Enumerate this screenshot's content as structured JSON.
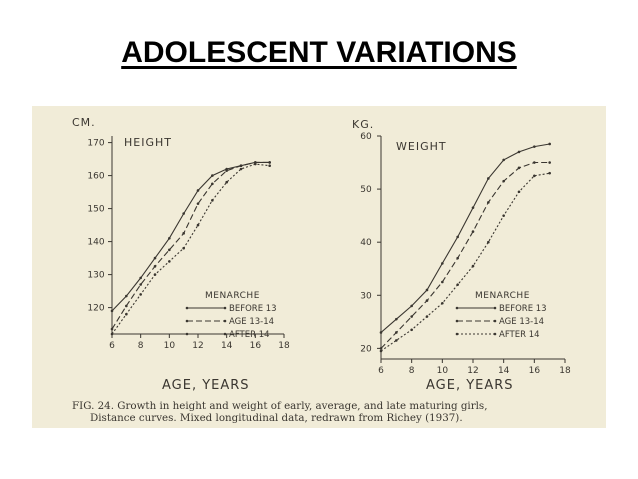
{
  "slide": {
    "title": "ADOLESCENT VARIATIONS"
  },
  "figure": {
    "caption_line1": "FIG. 24. Growth in height and weight of early, average, and late maturing girls,",
    "caption_line2": "Distance curves. Mixed longitudinal data, redrawn from Richey (1937).",
    "ink_color": "#3a3630",
    "paper_color": "#f1ecd8"
  },
  "chart_data": [
    {
      "type": "line",
      "title": "HEIGHT",
      "unit": "CM.",
      "xlabel": "AGE, YEARS",
      "ylabel": "",
      "xlim": [
        6,
        18
      ],
      "ylim": [
        112,
        172
      ],
      "xticks": [
        6,
        8,
        10,
        12,
        14,
        16,
        18
      ],
      "yticks": [
        120,
        130,
        140,
        150,
        160,
        170
      ],
      "legend_title": "MENARCHE",
      "legend_position": "bottom-right",
      "series": [
        {
          "name": "BEFORE 13",
          "style": "solid",
          "x": [
            6,
            7,
            8,
            9,
            10,
            11,
            12,
            13,
            14,
            15,
            16,
            17
          ],
          "y": [
            119,
            123.5,
            129,
            135,
            141,
            148.5,
            155.5,
            160,
            162,
            163,
            164,
            164
          ]
        },
        {
          "name": "AGE 13-14",
          "style": "dashed",
          "x": [
            6,
            7,
            8,
            9,
            10,
            11,
            12,
            13,
            14,
            15,
            16,
            17
          ],
          "y": [
            113.5,
            120.5,
            127,
            132.5,
            137.5,
            142.5,
            151.5,
            157.5,
            161.5,
            163,
            164,
            164
          ]
        },
        {
          "name": "AFTER 14",
          "style": "dotted",
          "x": [
            6,
            7,
            8,
            9,
            10,
            11,
            12,
            13,
            14,
            15,
            16,
            17
          ],
          "y": [
            112,
            118,
            124,
            130,
            134,
            138,
            145,
            152.5,
            158,
            162,
            163.5,
            163
          ]
        }
      ]
    },
    {
      "type": "line",
      "title": "WEIGHT",
      "unit": "KG.",
      "xlabel": "AGE, YEARS",
      "ylabel": "",
      "xlim": [
        6,
        18
      ],
      "ylim": [
        18,
        60
      ],
      "xticks": [
        6,
        8,
        10,
        12,
        14,
        16,
        18
      ],
      "yticks": [
        20,
        30,
        40,
        50,
        60
      ],
      "legend_title": "MENARCHE",
      "legend_position": "bottom-right",
      "series": [
        {
          "name": "BEFORE 13",
          "style": "solid",
          "x": [
            6,
            7,
            8,
            9,
            10,
            11,
            12,
            13,
            14,
            15,
            16,
            17
          ],
          "y": [
            23,
            25.5,
            28,
            31,
            36,
            41,
            46.5,
            52,
            55.5,
            57,
            58,
            58.5
          ]
        },
        {
          "name": "AGE 13-14",
          "style": "dashed",
          "x": [
            6,
            7,
            8,
            9,
            10,
            11,
            12,
            13,
            14,
            15,
            16,
            17
          ],
          "y": [
            20,
            23,
            26,
            29,
            32.5,
            37,
            42,
            47.5,
            51.5,
            54,
            55,
            55
          ]
        },
        {
          "name": "AFTER 14",
          "style": "dotted",
          "x": [
            6,
            7,
            8,
            9,
            10,
            11,
            12,
            13,
            14,
            15,
            16,
            17
          ],
          "y": [
            19.5,
            21.5,
            23.5,
            26,
            28.5,
            32,
            35.5,
            40,
            45,
            49.5,
            52.5,
            53
          ]
        }
      ]
    }
  ]
}
